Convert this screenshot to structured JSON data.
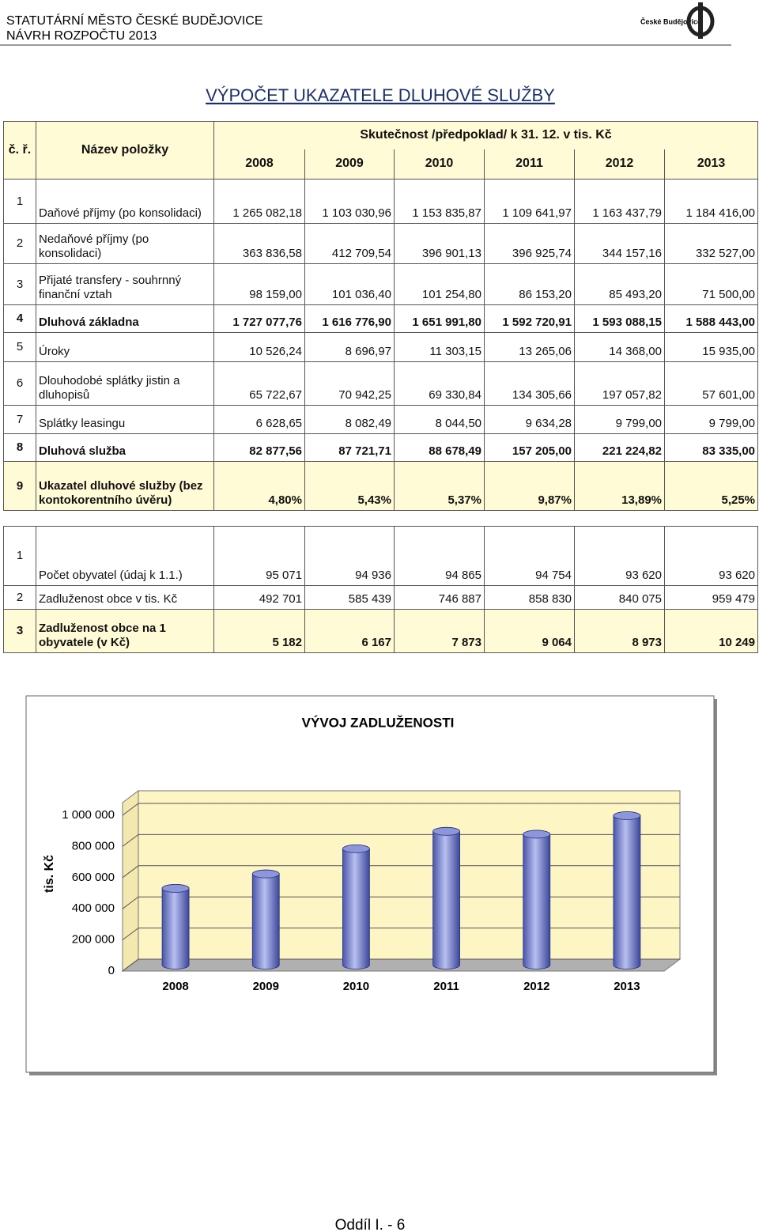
{
  "header": {
    "city": "STATUTÁRNÍ MĚSTO ČESKÉ BUDĚJOVICE",
    "budget": "NÁVRH ROZPOČTU 2013",
    "logo_text": "České Budějovice"
  },
  "title": "VÝPOČET UKAZATELE DLUHOVÉ SLUŽBY",
  "table": {
    "headers": {
      "no": "č. ř.",
      "name": "Název položky",
      "period": "Skutečnost /předpoklad/ k 31. 12. v tis. Kč",
      "years": [
        "2008",
        "2009",
        "2010",
        "2011",
        "2012",
        "2013"
      ]
    },
    "rows": [
      [
        "1",
        "Daňové příjmy  (po konsolidaci)",
        "1 265 082,18",
        "1 103 030,96",
        "1 153 835,87",
        "1 109 641,97",
        "1 163 437,79",
        "1 184 416,00"
      ],
      [
        "2",
        "Nedaňové příjmy (po konsolidaci)",
        "363 836,58",
        "412 709,54",
        "396 901,13",
        "396 925,74",
        "344 157,16",
        "332 527,00"
      ],
      [
        "3",
        "Přijaté transfery - souhrnný finanční vztah",
        "98 159,00",
        "101 036,40",
        "101 254,80",
        "86 153,20",
        "85 493,20",
        "71 500,00"
      ],
      [
        "4",
        "Dluhová základna",
        "1 727 077,76",
        "1 616 776,90",
        "1 651 991,80",
        "1 592 720,91",
        "1 593 088,15",
        "1 588 443,00"
      ],
      [
        "5",
        "Úroky",
        "10 526,24",
        "8 696,97",
        "11 303,15",
        "13 265,06",
        "14 368,00",
        "15 935,00"
      ],
      [
        "6",
        "Dlouhodobé splátky jistin a dluhopisů",
        "65 722,67",
        "70 942,25",
        "69 330,84",
        "134 305,66",
        "197 057,82",
        "57 601,00"
      ],
      [
        "7",
        "Splátky leasingu",
        "6 628,65",
        "8 082,49",
        "8 044,50",
        "9 634,28",
        "9 799,00",
        "9 799,00"
      ],
      [
        "8",
        "Dluhová služba",
        "82 877,56",
        "87 721,71",
        "88 678,49",
        "157 205,00",
        "221 224,82",
        "83 335,00"
      ],
      [
        "9",
        "Ukazatel dluhové služby (bez kontokorentního úvěru)",
        "4,80%",
        "5,43%",
        "5,37%",
        "9,87%",
        "13,89%",
        "5,25%"
      ]
    ]
  },
  "table2": {
    "rows": [
      [
        "1",
        "Počet obyvatel (údaj k 1.1.)",
        "95 071",
        "94 936",
        "94 865",
        "94 754",
        "93 620",
        "93 620"
      ],
      [
        "2",
        "Zadluženost obce v tis. Kč",
        "492 701",
        "585 439",
        "746 887",
        "858 830",
        "840 075",
        "959 479"
      ],
      [
        "3",
        "Zadluženost obce na 1 obyvatele (v Kč)",
        "5 182",
        "6 167",
        "7 873",
        "9 064",
        "8 973",
        "10 249"
      ]
    ]
  },
  "chart_data": {
    "type": "bar",
    "title": "VÝVOJ ZADLUŽENOSTI",
    "y_label": "tis. Kč",
    "categories": [
      "2008",
      "2009",
      "2010",
      "2011",
      "2012",
      "2013"
    ],
    "values": [
      492701,
      585439,
      746887,
      858830,
      840075,
      959479
    ],
    "color": "#8d96d8",
    "ylim": [
      0,
      1000000
    ],
    "yticks": [
      0,
      {
        "value": 200000,
        "label": "200 000"
      },
      {
        "value": 400000,
        "label": "400 000"
      },
      {
        "value": 600000,
        "label": "600 000"
      },
      {
        "value": 800000,
        "label": "800 000"
      },
      {
        "value": 1000000,
        "label": "1 000 000"
      }
    ],
    "grid": true
  },
  "footer": "Oddíl I. - 6"
}
